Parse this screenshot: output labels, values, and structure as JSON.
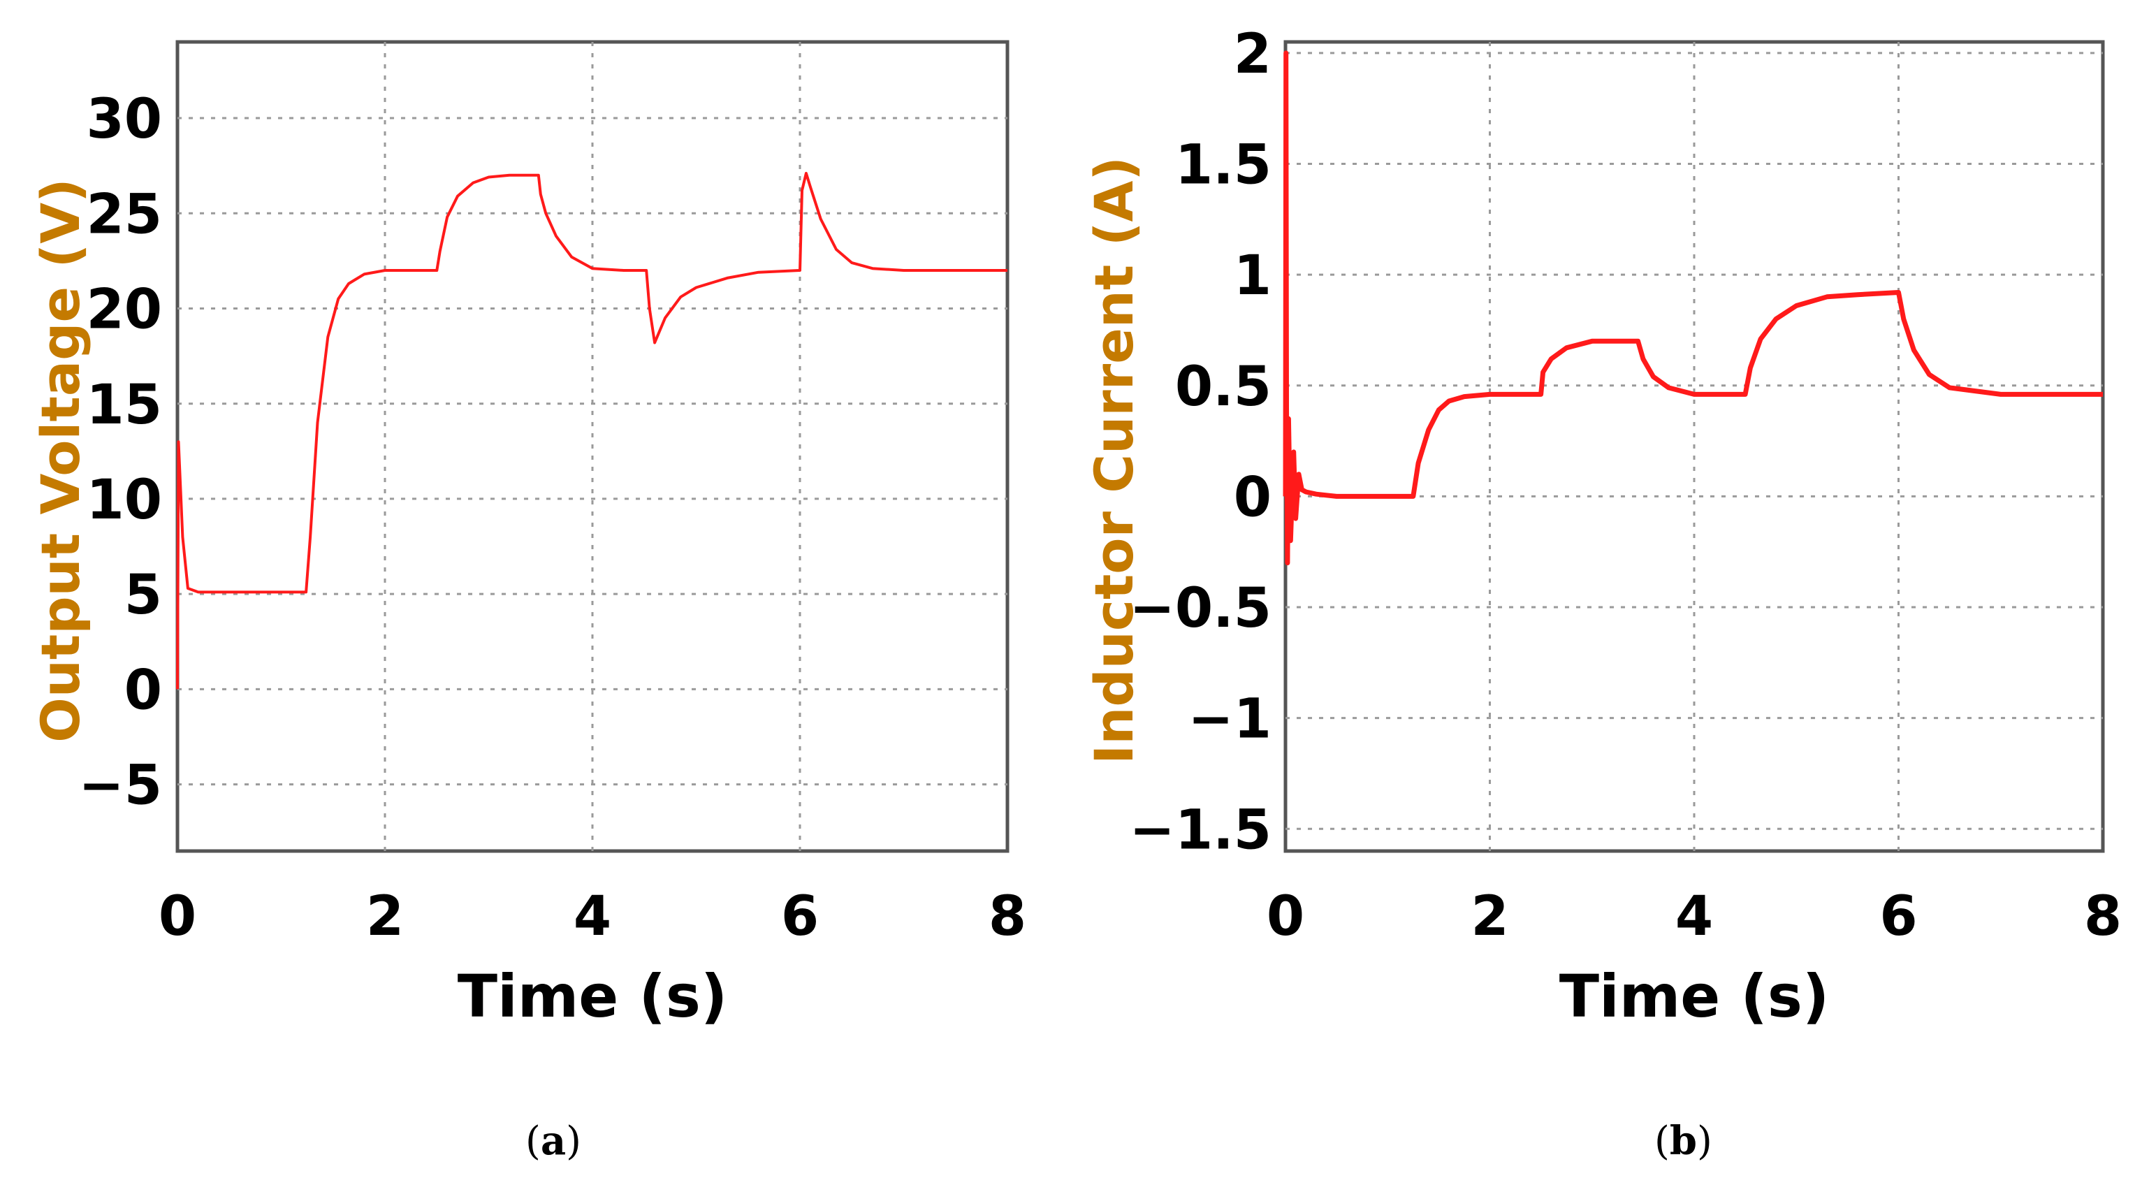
{
  "colors": {
    "trace": "#ff1a1a",
    "ylabel": "#c47a00",
    "grid": "#9a9a9a",
    "axes": "#555555"
  },
  "panels": [
    {
      "open": "(",
      "letter": "a",
      "close": ")"
    },
    {
      "open": "(",
      "letter": "b",
      "close": ")"
    }
  ],
  "chart_data": [
    {
      "type": "line",
      "xlabel": "Time (s)",
      "ylabel": "Output Voltage (V)",
      "xlim": [
        0,
        8
      ],
      "ylim": [
        -8.5,
        34
      ],
      "xticks": [
        0,
        2,
        4,
        6,
        8
      ],
      "xtick_labels": [
        "0",
        "2",
        "4",
        "6",
        "8"
      ],
      "yticks": [
        -5,
        0,
        5,
        10,
        15,
        20,
        25,
        30
      ],
      "ytick_labels": [
        "−5",
        "0",
        "5",
        "10",
        "15",
        "20",
        "25",
        "30"
      ],
      "grid": true,
      "series": [
        {
          "x": [
            0,
            0.01,
            0.05,
            0.1,
            0.2,
            0.4,
            1.0,
            1.24,
            1.28,
            1.35,
            1.45,
            1.55,
            1.65,
            1.8,
            2.0,
            2.3,
            2.5,
            2.53,
            2.6,
            2.7,
            2.85,
            3.0,
            3.2,
            3.48,
            3.5,
            3.55,
            3.65,
            3.8,
            4.0,
            4.3,
            4.52,
            4.55,
            4.6,
            4.7,
            4.85,
            5.0,
            5.3,
            5.6,
            6.0,
            6.02,
            6.06,
            6.1,
            6.2,
            6.35,
            6.5,
            6.7,
            7.0,
            8.0
          ],
          "y": [
            0,
            13,
            8,
            5.3,
            5.1,
            5.1,
            5.1,
            5.1,
            8,
            14,
            18.5,
            20.5,
            21.3,
            21.8,
            22,
            22,
            22,
            23,
            24.8,
            25.9,
            26.6,
            26.9,
            27,
            27,
            26,
            25,
            23.8,
            22.7,
            22.1,
            22,
            22,
            20,
            18.2,
            19.5,
            20.6,
            21.1,
            21.6,
            21.9,
            22,
            26.2,
            27.1,
            26.4,
            24.7,
            23.1,
            22.4,
            22.1,
            22,
            22
          ]
        }
      ]
    },
    {
      "type": "line",
      "xlabel": "Time (s)",
      "ylabel": "Inductor Current (A)",
      "xlim": [
        0,
        8
      ],
      "ylim": [
        -1.6,
        2.05
      ],
      "xticks": [
        0,
        2,
        4,
        6,
        8
      ],
      "xtick_labels": [
        "0",
        "2",
        "4",
        "6",
        "8"
      ],
      "yticks": [
        -1.5,
        -1,
        -0.5,
        0,
        0.5,
        1,
        1.5,
        2
      ],
      "ytick_labels": [
        "−1.5",
        "−1",
        "−0.5",
        "0",
        "0.5",
        "1",
        "1.5",
        "2"
      ],
      "grid": true,
      "series": [
        {
          "x": [
            0,
            0.005,
            0.01,
            0.02,
            0.03,
            0.05,
            0.08,
            0.1,
            0.13,
            0.16,
            0.2,
            0.3,
            0.5,
            1.0,
            1.25,
            1.3,
            1.4,
            1.5,
            1.6,
            1.75,
            2.0,
            2.5,
            2.52,
            2.6,
            2.75,
            3.0,
            3.45,
            3.5,
            3.6,
            3.75,
            4.0,
            4.5,
            4.55,
            4.65,
            4.8,
            5.0,
            5.3,
            5.6,
            6.0,
            6.05,
            6.15,
            6.3,
            6.5,
            7.0,
            8.0
          ],
          "y": [
            0,
            2.0,
            0.4,
            -0.3,
            0.35,
            -0.2,
            0.2,
            -0.1,
            0.1,
            0.03,
            0.02,
            0.01,
            0,
            0,
            0,
            0.15,
            0.3,
            0.39,
            0.43,
            0.45,
            0.46,
            0.46,
            0.56,
            0.62,
            0.67,
            0.7,
            0.7,
            0.62,
            0.54,
            0.49,
            0.46,
            0.46,
            0.58,
            0.71,
            0.8,
            0.86,
            0.9,
            0.91,
            0.92,
            0.8,
            0.66,
            0.55,
            0.49,
            0.46,
            0.46
          ]
        }
      ]
    }
  ]
}
